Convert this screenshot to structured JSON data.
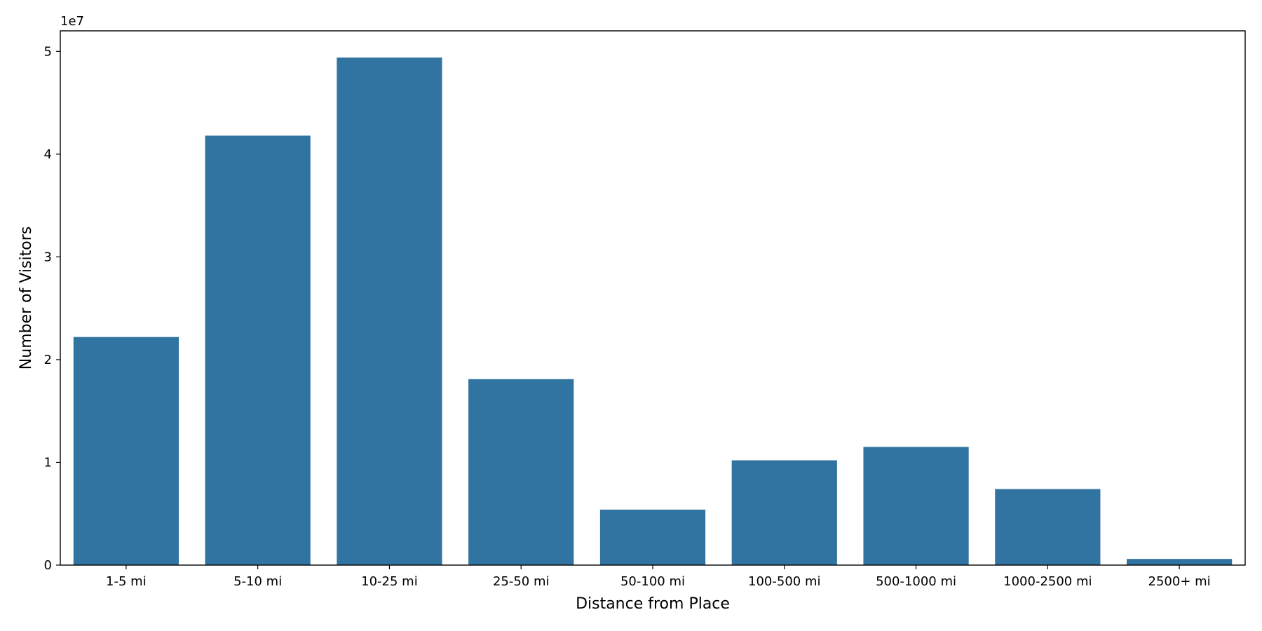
{
  "chart_data": {
    "type": "bar",
    "categories": [
      "1-5 mi",
      "5-10 mi",
      "10-25 mi",
      "25-50 mi",
      "50-100 mi",
      "100-500 mi",
      "500-1000 mi",
      "1000-2500 mi",
      "2500+ mi"
    ],
    "values": [
      22200000,
      41800000,
      49400000,
      18100000,
      5400000,
      10200000,
      11500000,
      7400000,
      600000
    ],
    "xlabel": "Distance from Place",
    "ylabel": "Number of Visitors",
    "y_offset_label": "1e7",
    "y_tick_values": [
      0,
      10000000,
      20000000,
      30000000,
      40000000,
      50000000
    ],
    "y_tick_labels": [
      "0",
      "1",
      "2",
      "3",
      "4",
      "5"
    ],
    "ylim": [
      0,
      52000000
    ],
    "bar_color": "#3274a1",
    "grid": false,
    "legend": "none"
  }
}
